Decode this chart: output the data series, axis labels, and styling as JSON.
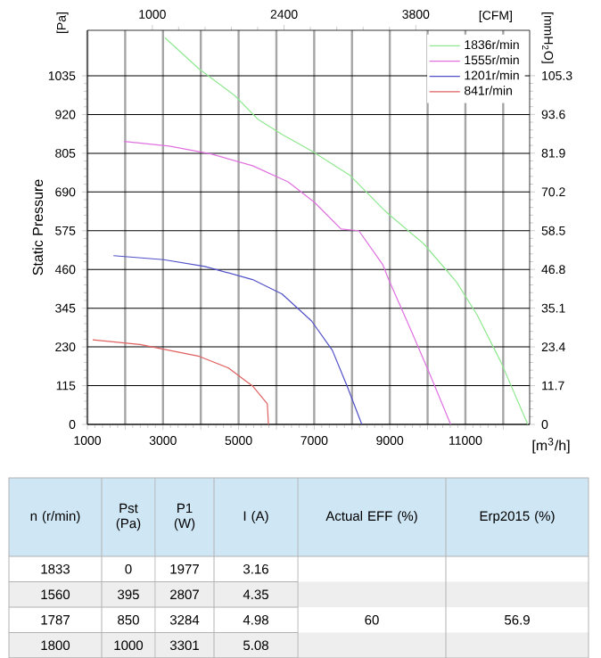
{
  "chart_data": {
    "type": "line",
    "ylabel": "Static Pressure",
    "xlabel": "[m$^{3}$/h]",
    "x2label": "[CFM]",
    "y2label": "[mmH$_{2}$O]",
    "xlim": [
      1000,
      12700
    ],
    "xticks": [
      1000,
      {
        "value": 2000,
        "label": null
      },
      3000,
      {
        "value": 4000,
        "label": null
      },
      5000,
      {
        "value": 6000,
        "label": null
      },
      7000,
      {
        "value": 8000,
        "label": null
      },
      9000,
      {
        "value": 10000,
        "label": null
      },
      11000,
      {
        "value": 12000,
        "label": null
      }
    ],
    "ylim": [
      0,
      1170
    ],
    "yticks": [
      0,
      115,
      230,
      345,
      460,
      575,
      690,
      805,
      920,
      1035
    ],
    "x2lim": [
      310,
      5010
    ],
    "x2ticks": [
      1000,
      2400,
      3800
    ],
    "y2lim": [
      0,
      119.0
    ],
    "y2ticks": [
      0,
      11.7,
      23.4,
      35.1,
      46.8,
      58.5,
      70.2,
      81.9,
      93.6,
      105.3
    ],
    "grid": true,
    "legend": "top right",
    "series": [
      {
        "name": "1836r/min",
        "color": "#8fe88f",
        "x": [
          3050,
          3960,
          4900,
          5520,
          6150,
          6930,
          7950,
          8810,
          8970,
          9900,
          10770,
          11310,
          11940,
          12650
        ],
        "values": [
          1148,
          1055,
          976,
          905,
          861,
          812,
          739,
          641,
          624,
          536,
          422,
          325,
          185,
          0
        ]
      },
      {
        "name": "1555r/min",
        "color": "#e070e0",
        "x": [
          1970,
          3170,
          4270,
          5370,
          6310,
          7010,
          7710,
          8180,
          8810,
          8970,
          9590,
          10060,
          10610
        ],
        "values": [
          840,
          826,
          803,
          768,
          720,
          659,
          580,
          575,
          475,
          430,
          272,
          149,
          0
        ]
      },
      {
        "name": "1201r/min",
        "color": "#5050c8",
        "x": [
          1690,
          3020,
          4110,
          5370,
          6150,
          6930,
          7480,
          7870,
          8260
        ],
        "values": [
          501,
          489,
          469,
          430,
          387,
          307,
          220,
          114,
          0
        ]
      },
      {
        "name": "841r/min",
        "color": "#e06060",
        "x": [
          1140,
          2390,
          3960,
          4740,
          5370,
          5760,
          5790
        ],
        "values": [
          251,
          237,
          202,
          167,
          114,
          61,
          0
        ]
      }
    ],
    "annotations": [
      "[Pa]",
      "n (r/min)",
      "Pst (Pa)",
      "P1 (W)",
      "I (A)",
      "Actual EFF (%)",
      "Erp2015 (%)",
      "1833",
      "0",
      "1977",
      "3.16",
      "1560",
      "395",
      "2807",
      "4.35",
      "1787",
      "850",
      "3284",
      "4.98",
      "60",
      "56.9",
      "1800",
      "1000",
      "3301",
      "5.08"
    ]
  }
}
